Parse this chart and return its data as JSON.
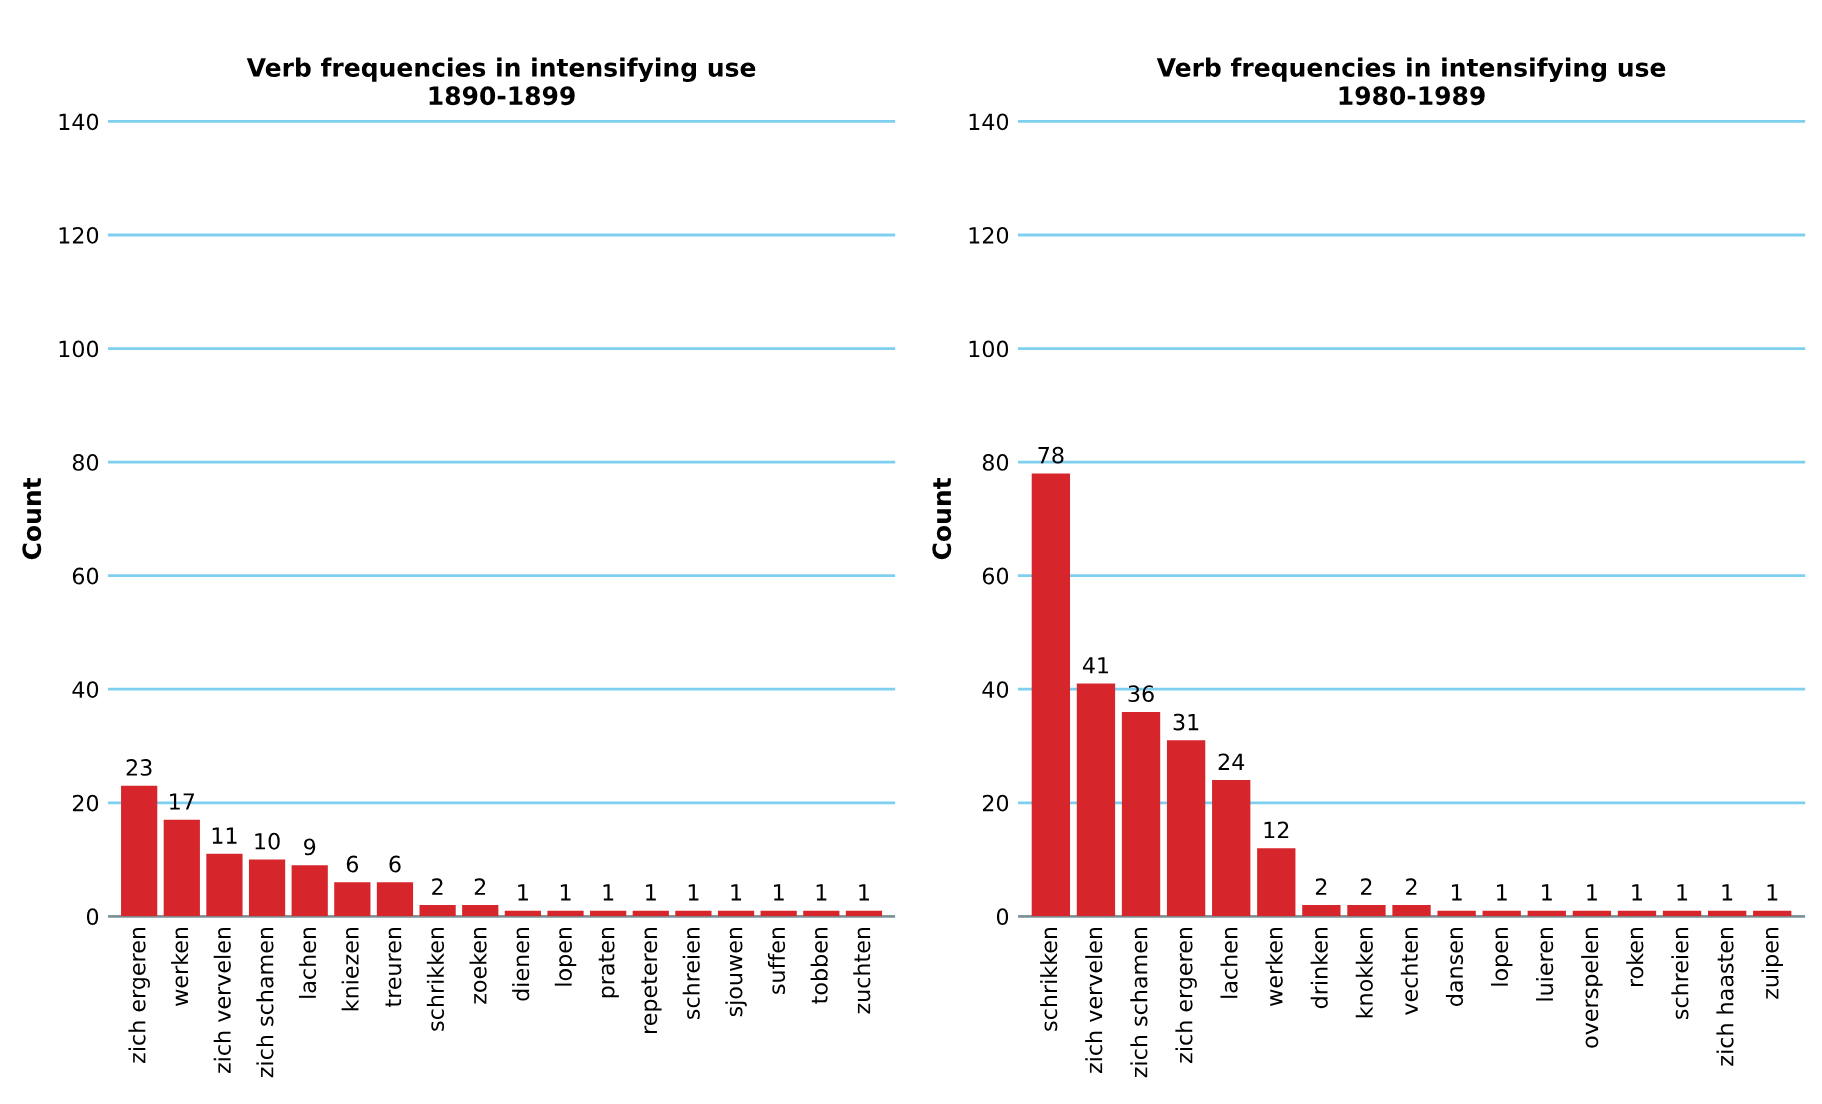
{
  "chart_data": [
    {
      "type": "bar",
      "title": "Verb frequencies in intensifying use",
      "subtitle": "1890-1899",
      "ylabel": "Count",
      "categories": [
        "zich ergeren",
        "werken",
        "zich vervelen",
        "zich schamen",
        "lachen",
        "kniezen",
        "treuren",
        "schrikken",
        "zoeken",
        "dienen",
        "lopen",
        "praten",
        "repeteren",
        "schreien",
        "sjouwen",
        "suffen",
        "tobben",
        "zuchten"
      ],
      "values": [
        23,
        17,
        11,
        10,
        9,
        6,
        6,
        2,
        2,
        1,
        1,
        1,
        1,
        1,
        1,
        1,
        1,
        1
      ],
      "color": "#d7262b",
      "ylim": [
        0,
        140
      ],
      "yticks": [
        0,
        20,
        40,
        60,
        80,
        100,
        120,
        140
      ],
      "grid": "y",
      "data_labels": true
    },
    {
      "type": "bar",
      "title": "Verb frequencies in intensifying use",
      "subtitle": "1980-1989",
      "ylabel": "Count",
      "categories": [
        "schrikken",
        "zich vervelen",
        "zich schamen",
        "zich ergeren",
        "lachen",
        "werken",
        "drinken",
        "knokken",
        "vechten",
        "dansen",
        "lopen",
        "luieren",
        "overspelen",
        "roken",
        "schreien",
        "zich haasten",
        "zuipen"
      ],
      "values": [
        78,
        41,
        36,
        31,
        24,
        12,
        2,
        2,
        2,
        1,
        1,
        1,
        1,
        1,
        1,
        1,
        1
      ],
      "color": "#d7262b",
      "ylim": [
        0,
        140
      ],
      "yticks": [
        0,
        20,
        40,
        60,
        80,
        100,
        120,
        140
      ],
      "grid": "y",
      "data_labels": true
    }
  ]
}
